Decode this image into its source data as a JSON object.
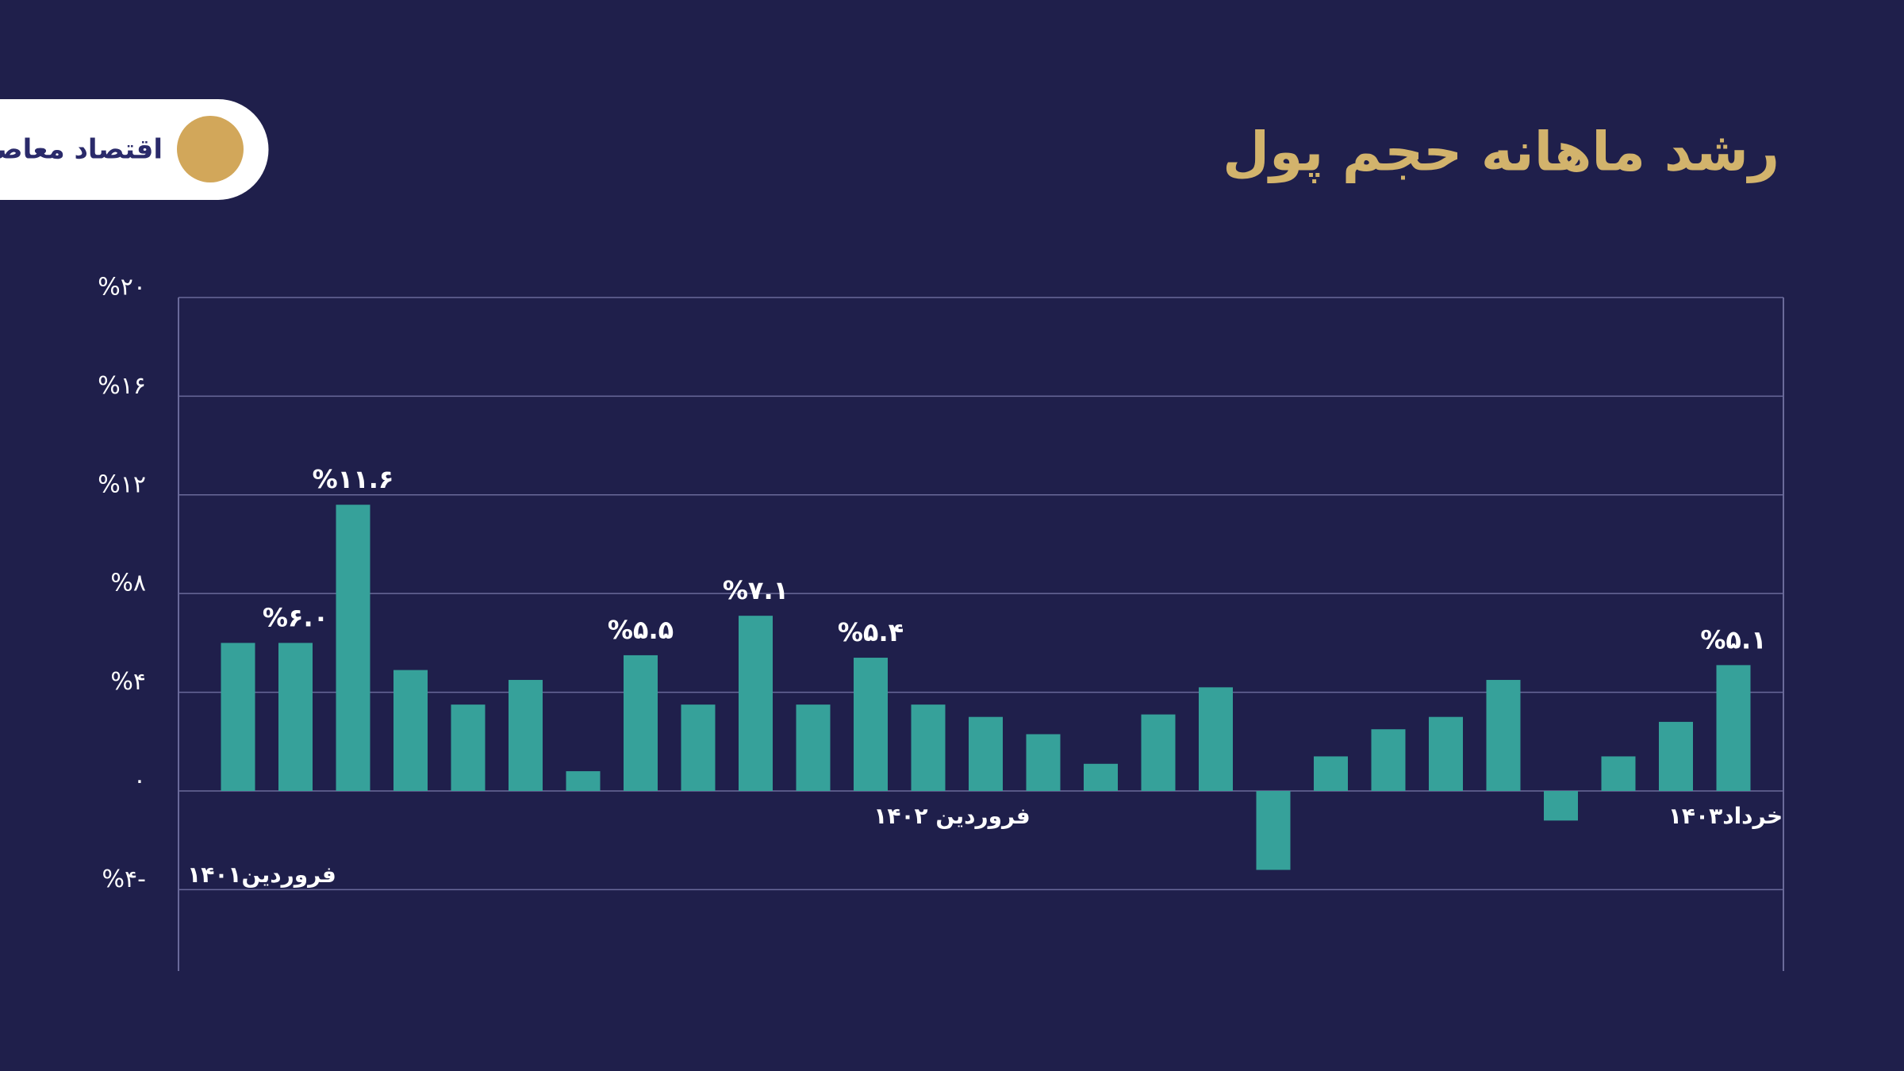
{
  "logo": "اقتصاد معاصر",
  "chart_data": {
    "type": "bar",
    "title": "رشد ماهانه حجم پول",
    "categories": [
      "فروردین۱۴۰۱",
      null,
      null,
      null,
      null,
      null,
      null,
      null,
      null,
      null,
      null,
      null,
      "فروردین ۱۴۰۲",
      null,
      null,
      null,
      null,
      null,
      null,
      null,
      null,
      null,
      null,
      null,
      null,
      null,
      "خرداد۱۴۰۳"
    ],
    "values": [
      6.0,
      6.0,
      11.6,
      4.9,
      3.5,
      4.5,
      0.8,
      5.5,
      3.5,
      7.1,
      3.5,
      5.4,
      3.5,
      3.0,
      2.3,
      1.1,
      3.1,
      4.2,
      -3.2,
      1.4,
      2.5,
      3.0,
      4.5,
      -1.2,
      1.4,
      2.8,
      5.1
    ],
    "value_labels": [
      null,
      "%۶.۰",
      "%۱۱.۶",
      null,
      null,
      null,
      null,
      "%۵.۵",
      null,
      "%۷.۱",
      null,
      "%۵.۴",
      null,
      null,
      null,
      null,
      null,
      null,
      null,
      null,
      null,
      null,
      null,
      null,
      null,
      null,
      "%۵.۱"
    ],
    "color": "#36a19a",
    "ylim": [
      -7.3,
      20
    ],
    "yticks": [
      {
        "value": -4,
        "label": "%۴-"
      },
      {
        "value": 0,
        "label": "۰"
      },
      {
        "value": 4,
        "label": "%۴"
      },
      {
        "value": 8,
        "label": "%۸"
      },
      {
        "value": 12,
        "label": "%۱۲"
      },
      {
        "value": 16,
        "label": "%۱۶"
      },
      {
        "value": 20,
        "label": "%۲۰"
      }
    ],
    "grid": true
  }
}
